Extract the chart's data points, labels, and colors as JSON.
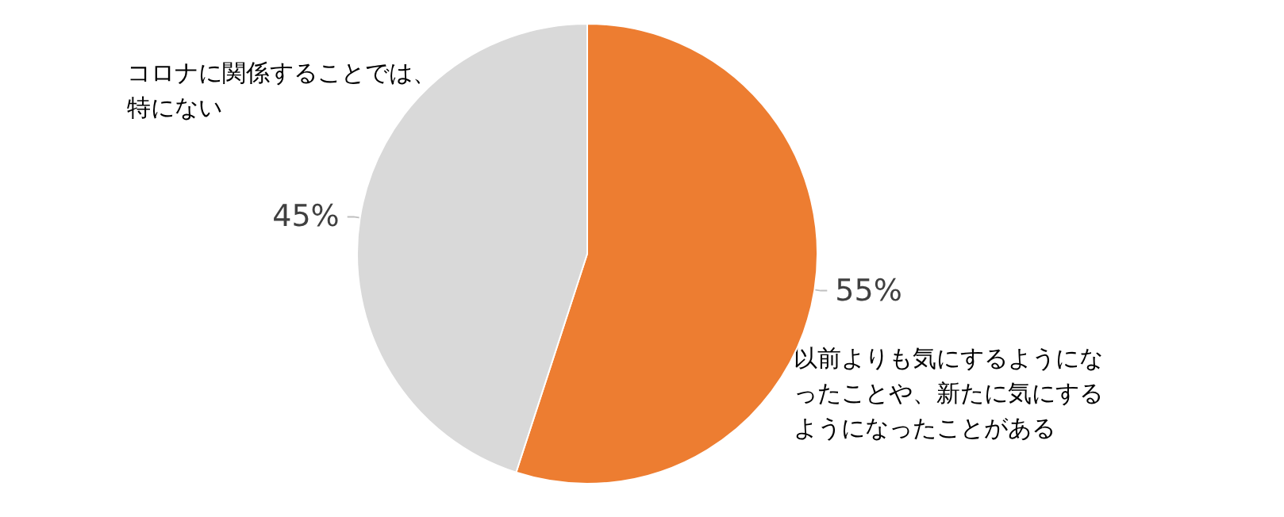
{
  "chart_data": {
    "type": "pie",
    "categories": [
      "以前よりも気にするようになったことや、新たに気にするようになったことがある",
      "コロナに関係することでは、特にない"
    ],
    "values": [
      55,
      45
    ],
    "value_labels": [
      "55%",
      "45%"
    ],
    "colors": [
      "#ed7d31",
      "#d9d9d9"
    ],
    "legend": false
  }
}
